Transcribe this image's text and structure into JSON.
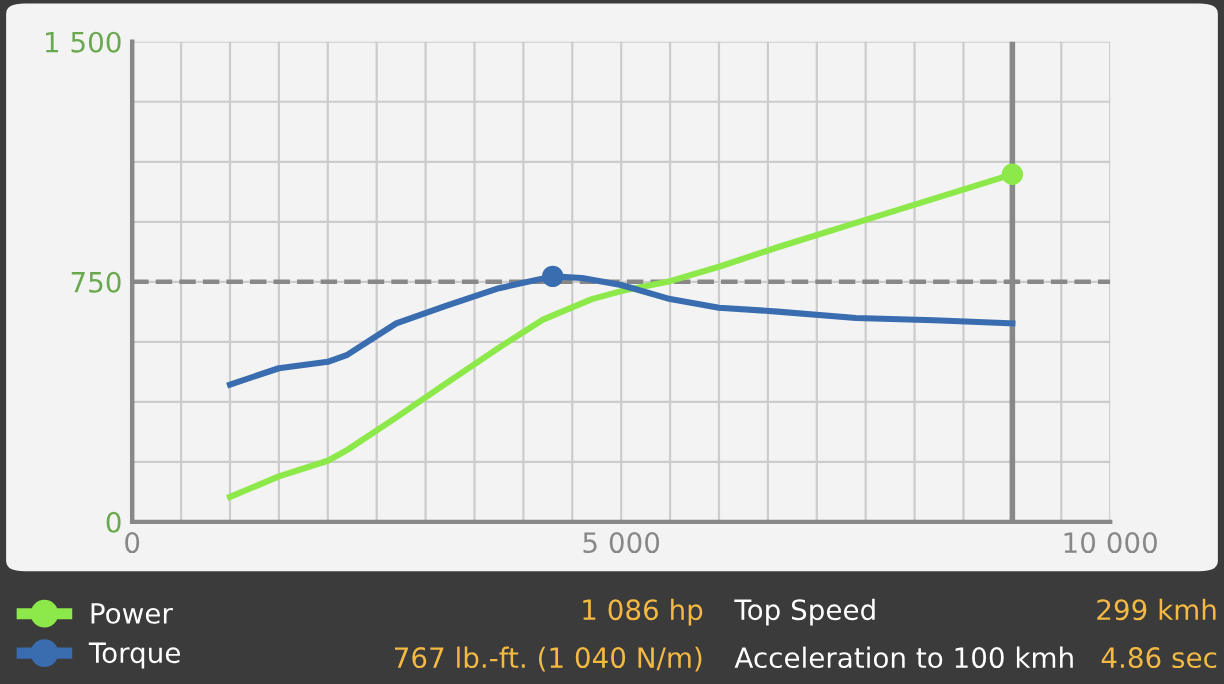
{
  "chart_data": {
    "type": "line",
    "xlim": [
      0,
      10000
    ],
    "xticks": [
      0,
      {
        "value": 500,
        "label": null
      },
      {
        "value": 1000,
        "label": null
      },
      {
        "value": 1500,
        "label": null
      },
      {
        "value": 2000,
        "label": null
      },
      {
        "value": 2500,
        "label": null
      },
      {
        "value": 3000,
        "label": null
      },
      {
        "value": 3500,
        "label": null
      },
      {
        "value": 4000,
        "label": null
      },
      {
        "value": 4500,
        "label": null
      },
      {
        "value": 5000,
        "label": "5 000"
      },
      {
        "value": 5500,
        "label": null
      },
      {
        "value": 6000,
        "label": null
      },
      {
        "value": 6500,
        "label": null
      },
      {
        "value": 7000,
        "label": null
      },
      {
        "value": 7500,
        "label": null
      },
      {
        "value": 8000,
        "label": null
      },
      {
        "value": 8500,
        "label": null
      },
      {
        "value": 9000,
        "label": null
      },
      {
        "value": 9500,
        "label": null
      },
      {
        "value": 10000,
        "label": "10 000"
      }
    ],
    "ylim": [
      0,
      1500
    ],
    "yticks": [
      0,
      {
        "value": 187.5,
        "label": null
      },
      {
        "value": 375,
        "label": null
      },
      {
        "value": 562.5,
        "label": null
      },
      750,
      {
        "value": 937.5,
        "label": null
      },
      {
        "value": 1125,
        "label": null
      },
      {
        "value": 1312.5,
        "label": null
      },
      {
        "value": 1500,
        "label": "1 500"
      }
    ],
    "grid": true,
    "legend": "bottom",
    "series": [
      {
        "name": "Power",
        "color": "#8de84a",
        "x": [
          1000,
          1500,
          2000,
          2200,
          2700,
          3200,
          3750,
          4200,
          4700,
          5000,
          5500,
          6000,
          6600,
          7400,
          8200,
          9000
        ],
        "values": [
          78,
          142,
          191,
          225,
          326,
          431,
          544,
          632,
          696,
          721,
          752,
          797,
          858,
          934,
          1010,
          1086
        ]
      },
      {
        "name": "Torque",
        "color": "#3a6db0",
        "x": [
          1000,
          1500,
          2000,
          2200,
          2700,
          3200,
          3750,
          4300,
          4600,
          5000,
          5500,
          6000,
          6600,
          7400,
          8200,
          9000
        ],
        "values": [
          429,
          480,
          500,
          522,
          620,
          674,
          730,
          767,
          762,
          740,
          696,
          669,
          657,
          637,
          630,
          620
        ]
      },
      {
        "type": "scatter",
        "marker": "circle",
        "color": "#8de84a",
        "x": [
          9000
        ],
        "values": [
          1086
        ]
      },
      {
        "type": "scatter",
        "marker": "circle",
        "color": "#3a6db0",
        "x": [
          4300
        ],
        "values": [
          767
        ]
      }
    ],
    "ref_lines": [
      {
        "axis": "y",
        "value": 750,
        "color": "#888888",
        "line_style": "dashed"
      },
      {
        "axis": "x",
        "value": 9000,
        "color": "#888888",
        "line_style": "solid"
      }
    ],
    "annotations": [
      "1 086 hp",
      "Top Speed",
      "299 kmh",
      "767 lb.-ft. (1 040 N/m)",
      "Acceleration to 100 kmh",
      "4.86 sec"
    ]
  }
}
